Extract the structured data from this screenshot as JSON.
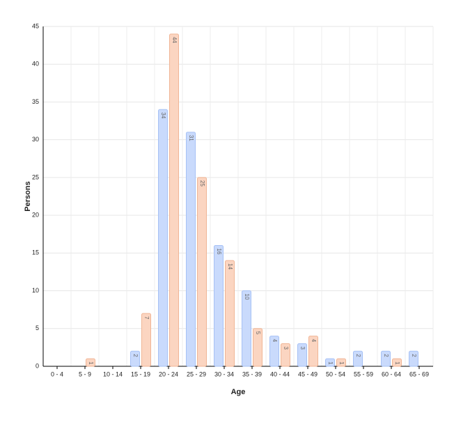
{
  "chart_data": {
    "type": "bar",
    "categories": [
      "0 - 4",
      "5 - 9",
      "10 - 14",
      "15 - 19",
      "20 - 24",
      "25 - 29",
      "30 - 34",
      "35 - 39",
      "40 - 44",
      "45 - 49",
      "50 - 54",
      "55 - 59",
      "60 - 64",
      "65 - 69"
    ],
    "series": [
      {
        "color": "#c9dafc",
        "values": [
          null,
          null,
          null,
          2,
          34,
          31,
          16,
          10,
          4,
          3,
          1,
          2,
          2,
          2
        ]
      },
      {
        "color": "#fbd5c1",
        "values": [
          null,
          1,
          null,
          7,
          44,
          25,
          14,
          5,
          3,
          4,
          1,
          null,
          1,
          null
        ]
      }
    ],
    "x_label": "Age",
    "y_label": "Persons",
    "ylim": [
      0,
      45
    ],
    "yticks": [
      0,
      5,
      10,
      15,
      20,
      25,
      30,
      35,
      40,
      45
    ],
    "grid": true
  }
}
